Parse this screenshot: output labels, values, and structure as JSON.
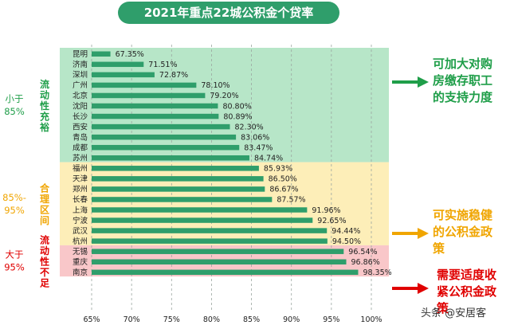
{
  "title": "2021年重点22城公积金个贷率",
  "watermark": "头条 @安居客",
  "colors": {
    "title_bg": "#2f9e6b",
    "bar": "#2f9e6b",
    "zone_green": "#b7e6c8",
    "zone_yellow": "#fdeeb8",
    "zone_pink": "#f9c7c9",
    "green_text": "#1f9e49",
    "orange_text": "#f0a500",
    "red_text": "#e00000"
  },
  "chart_data": {
    "type": "bar",
    "orientation": "horizontal",
    "categories": [
      "昆明",
      "济南",
      "深圳",
      "广州",
      "北京",
      "沈阳",
      "长沙",
      "西安",
      "青岛",
      "成都",
      "苏州",
      "福州",
      "天津",
      "郑州",
      "长春",
      "上海",
      "宁波",
      "武汉",
      "杭州",
      "无锡",
      "重庆",
      "南京"
    ],
    "values": [
      67.35,
      71.51,
      72.87,
      78.1,
      79.2,
      80.8,
      80.89,
      82.3,
      83.06,
      83.47,
      84.74,
      85.93,
      86.5,
      86.67,
      87.57,
      91.96,
      92.65,
      94.44,
      94.5,
      96.54,
      96.86,
      98.35
    ],
    "data_labels": [
      "67.35%",
      "71.51%",
      "72.87%",
      "78.10%",
      "79.20%",
      "80.80%",
      "80.89%",
      "82.30%",
      "83.06%",
      "83.47%",
      "84.74%",
      "85.93%",
      "86.50%",
      "86.67%",
      "87.57%",
      "91.96%",
      "92.65%",
      "94.44%",
      "94.50%",
      "96.54%",
      "96.86%",
      "98.35%"
    ],
    "xlim": [
      65,
      100
    ],
    "x_ticks": [
      65,
      70,
      75,
      80,
      85,
      90,
      95,
      100
    ],
    "x_tick_labels": [
      "65%",
      "70%",
      "75%",
      "80%",
      "85%",
      "90%",
      "95%",
      "100%"
    ],
    "grid": "vertical-dashed",
    "zones": [
      {
        "from_index": 0,
        "to_index": 10,
        "range_label": "小于\n85%",
        "zone_label": "流动性充裕",
        "note": "可加大对购\n房缴存职工\n的支持力度",
        "color": "green"
      },
      {
        "from_index": 11,
        "to_index": 18,
        "range_label": "85%-\n95%",
        "zone_label": "合理区间",
        "note": "可实施稳健\n的公积金政\n策",
        "color": "yellow"
      },
      {
        "from_index": 19,
        "to_index": 21,
        "range_label": "大于\n95%",
        "zone_label": "流动性不足",
        "note": "需要适度收\n紧公积金政\n策",
        "color": "red"
      }
    ]
  }
}
